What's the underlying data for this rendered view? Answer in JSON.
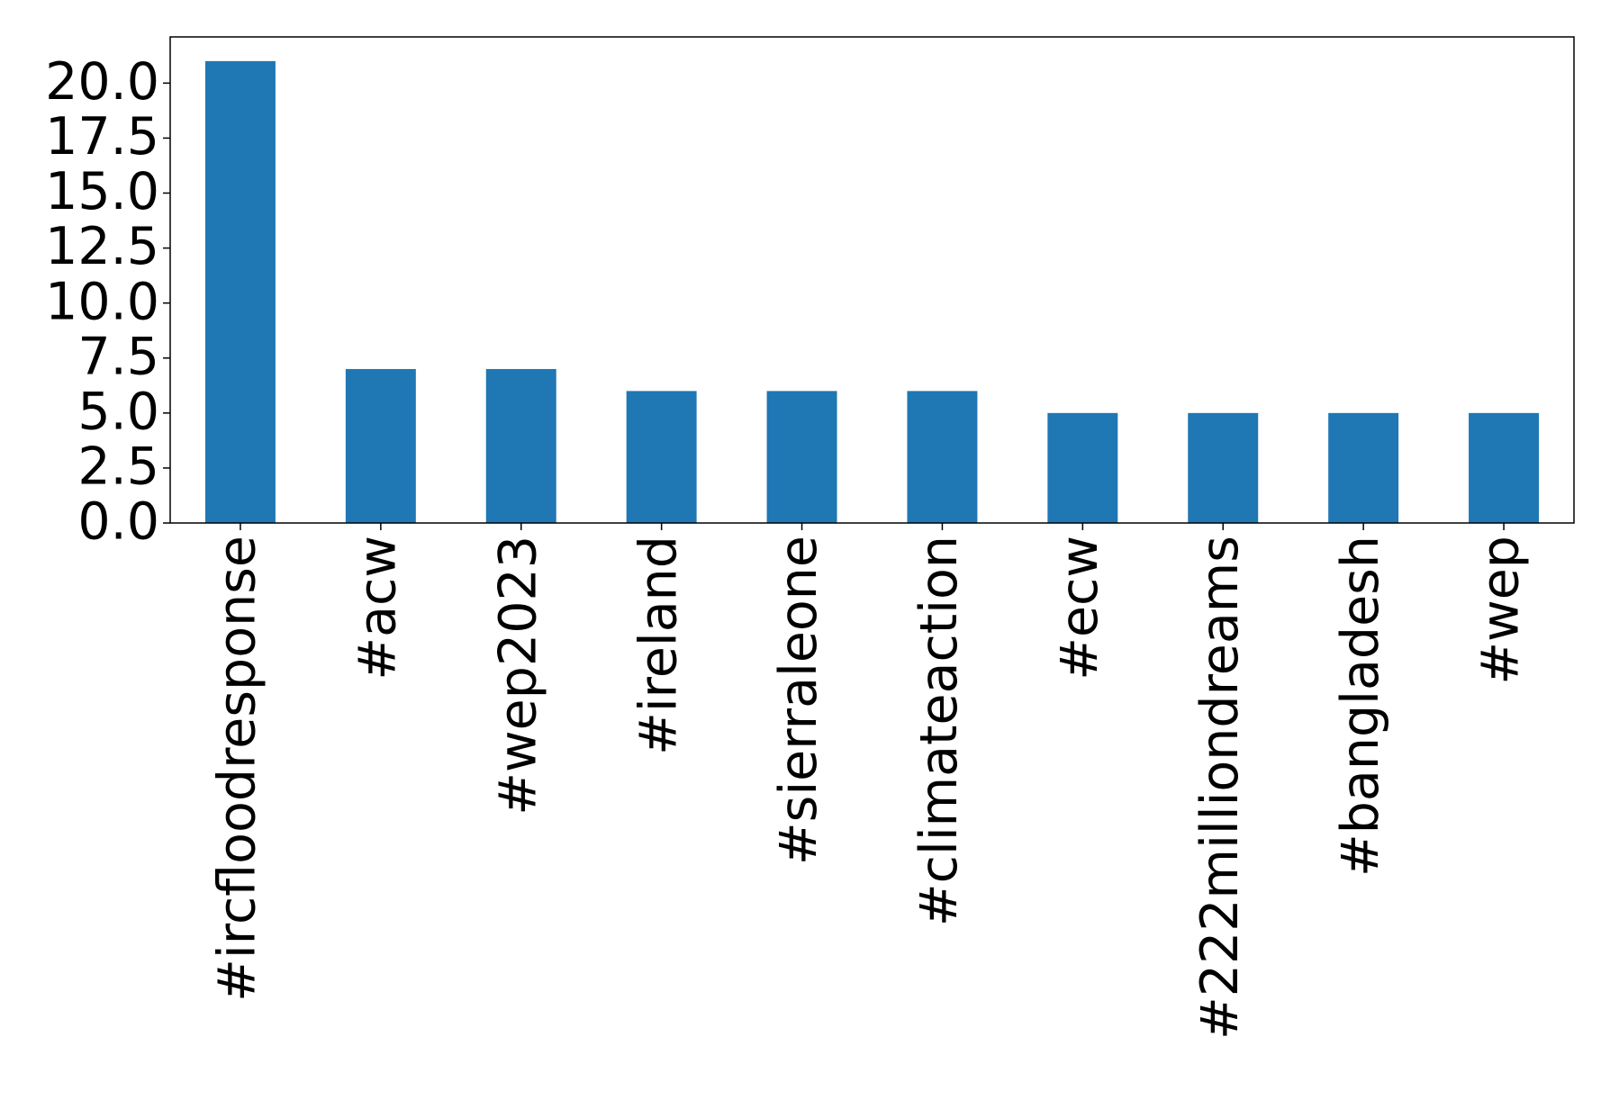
{
  "chart_data": {
    "type": "bar",
    "categories": [
      "#ircfloodresponse",
      "#acw",
      "#wep2023",
      "#ireland",
      "#sierraleone",
      "#climateaction",
      "#ecw",
      "#222milliondreams",
      "#bangladesh",
      "#wep"
    ],
    "values": [
      21,
      7,
      7,
      6,
      6,
      6,
      5,
      5,
      5,
      5
    ],
    "color": "#1f77b4",
    "ylim": [
      0,
      22.1
    ],
    "yticks": [
      {
        "value": 0,
        "label": "0.0"
      },
      {
        "value": 2.5,
        "label": "2.5"
      },
      {
        "value": 5,
        "label": "5.0"
      },
      {
        "value": 7.5,
        "label": "7.5"
      },
      {
        "value": 10,
        "label": "10.0"
      },
      {
        "value": 12.5,
        "label": "12.5"
      },
      {
        "value": 15,
        "label": "15.0"
      },
      {
        "value": 17.5,
        "label": "17.5"
      },
      {
        "value": 20,
        "label": "20.0"
      }
    ],
    "grid": false
  }
}
